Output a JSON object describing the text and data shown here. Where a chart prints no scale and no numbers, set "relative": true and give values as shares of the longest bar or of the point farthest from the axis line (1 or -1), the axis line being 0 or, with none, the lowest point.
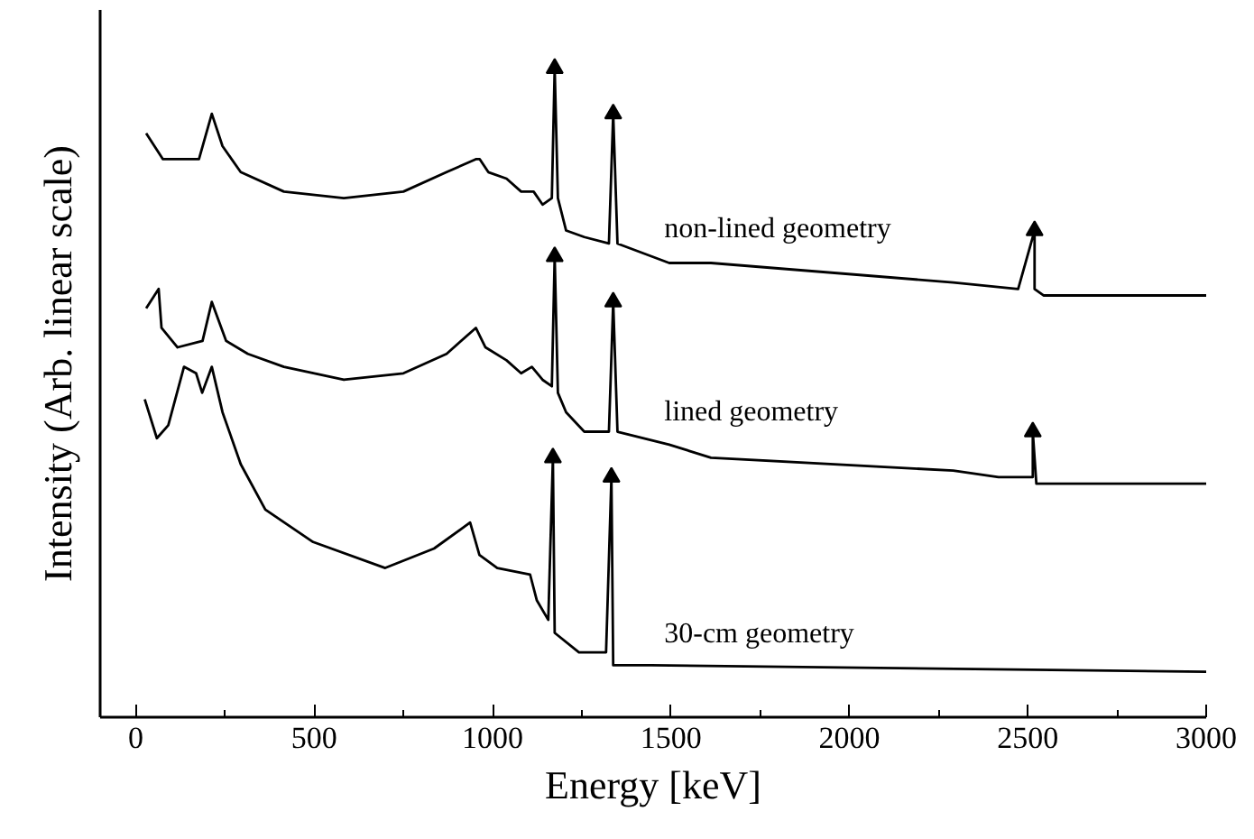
{
  "chart_data": {
    "type": "line",
    "relative": true,
    "xlabel": "Energy [keV]",
    "ylabel": "Intensity (Arb. linear scale)",
    "xlim": [
      -100,
      3000
    ],
    "xticks": [
      0,
      500,
      1000,
      1500,
      2000,
      2500,
      3000,
      {
        "value": 250,
        "label": null
      },
      {
        "value": 750,
        "label": null
      },
      {
        "value": 1250,
        "label": null
      },
      {
        "value": 1750,
        "label": null
      },
      {
        "value": 2250,
        "label": null
      },
      {
        "value": 2750,
        "label": null
      }
    ],
    "grid": false,
    "marker": "none",
    "line_style": "solid",
    "series": [
      {
        "name": "non-lined geometry",
        "color": "#000000",
        "x": [
          29,
          76,
          117,
          177,
          213,
          243,
          294,
          415,
          583,
          750,
          871,
          953,
          964,
          988,
          1039,
          1080,
          1115,
          1140,
          1166,
          1174,
          1183,
          1206,
          1257,
          1326,
          1338,
          1350,
          1495,
          1612,
          2291,
          2473,
          2519,
          2519,
          2544,
          3000
        ],
        "values": [
          0.9,
          0.86,
          0.86,
          0.86,
          0.93,
          0.88,
          0.84,
          0.81,
          0.8,
          0.81,
          0.84,
          0.86,
          0.86,
          0.84,
          0.83,
          0.81,
          0.81,
          0.79,
          0.8,
          1.0,
          0.8,
          0.75,
          0.74,
          0.73,
          0.93,
          0.73,
          0.7,
          0.7,
          0.67,
          0.66,
          0.75,
          0.66,
          0.65,
          0.65
        ]
      },
      {
        "name": "lined geometry",
        "color": "#000000",
        "x": [
          29,
          64,
          72,
          117,
          187,
          213,
          253,
          314,
          415,
          583,
          750,
          871,
          953,
          980,
          1039,
          1080,
          1110,
          1140,
          1166,
          1174,
          1183,
          1206,
          1257,
          1326,
          1338,
          1350,
          1495,
          1612,
          2291,
          2418,
          2514,
          2514,
          2524,
          3000
        ],
        "values": [
          0.63,
          0.66,
          0.6,
          0.57,
          0.58,
          0.64,
          0.58,
          0.56,
          0.54,
          0.52,
          0.53,
          0.56,
          0.6,
          0.57,
          0.55,
          0.53,
          0.54,
          0.52,
          0.51,
          0.71,
          0.5,
          0.47,
          0.44,
          0.44,
          0.64,
          0.44,
          0.42,
          0.4,
          0.38,
          0.37,
          0.37,
          0.44,
          0.36,
          0.36
        ]
      },
      {
        "name": "30-cm geometry",
        "color": "#000000",
        "x": [
          25,
          59,
          91,
          135,
          169,
          186,
          213,
          243,
          294,
          363,
          497,
          699,
          836,
          937,
          963,
          1013,
          1105,
          1124,
          1156,
          1169,
          1174,
          1242,
          1318,
          1333,
          1338,
          1444,
          3000
        ],
        "values": [
          0.49,
          0.43,
          0.45,
          0.54,
          0.53,
          0.5,
          0.54,
          0.47,
          0.39,
          0.32,
          0.27,
          0.23,
          0.26,
          0.3,
          0.25,
          0.23,
          0.22,
          0.18,
          0.15,
          0.4,
          0.13,
          0.1,
          0.1,
          0.37,
          0.08,
          0.08,
          0.07
        ]
      },
      {
        "type": "scatter",
        "marker": "triangle",
        "color": "#000000",
        "x": [
          1174,
          1338,
          2519,
          1174,
          1338,
          2514,
          1169,
          1333
        ],
        "values": [
          1.0,
          0.93,
          0.75,
          0.71,
          0.64,
          0.44,
          0.4,
          0.37
        ]
      }
    ]
  }
}
